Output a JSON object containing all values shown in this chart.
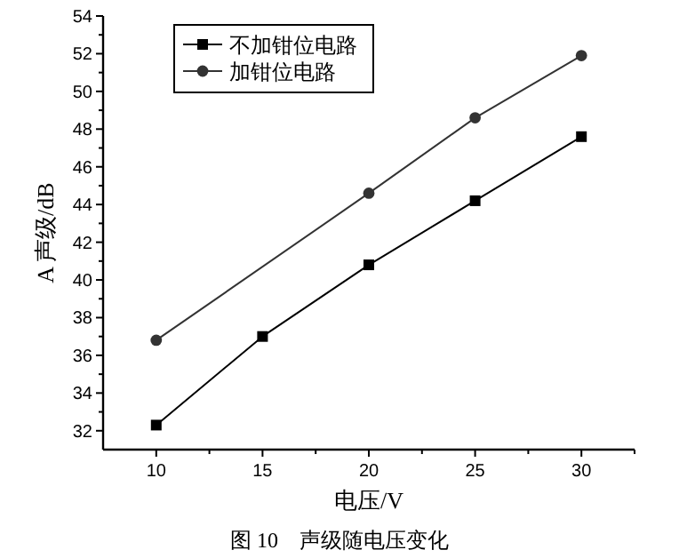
{
  "chart_data": {
    "type": "line",
    "xlabel": "电压/V",
    "ylabel": "A 声级/dB",
    "annotations": [
      "图 10　声级随电压变化"
    ],
    "xlim": [
      7.5,
      32.5
    ],
    "xticks": [
      10,
      {
        "value": 12.5,
        "label": null
      },
      15,
      {
        "value": 17.5,
        "label": null
      },
      20,
      {
        "value": 22.5,
        "label": null
      },
      25,
      {
        "value": 27.5,
        "label": null
      },
      30,
      {
        "value": 32.5,
        "label": null
      }
    ],
    "ylim": [
      31,
      54
    ],
    "yticks": [
      32,
      {
        "value": 33,
        "label": null
      },
      34,
      {
        "value": 35,
        "label": null
      },
      36,
      {
        "value": 37,
        "label": null
      },
      38,
      {
        "value": 39,
        "label": null
      },
      40,
      {
        "value": 41,
        "label": null
      },
      42,
      {
        "value": 43,
        "label": null
      },
      44,
      {
        "value": 45,
        "label": null
      },
      46,
      {
        "value": 47,
        "label": null
      },
      48,
      {
        "value": 49,
        "label": null
      },
      50,
      {
        "value": 51,
        "label": null
      },
      52,
      {
        "value": 53,
        "label": null
      },
      54
    ],
    "legend": "top left",
    "grid": false,
    "series": [
      {
        "name": "不加钳位电路",
        "color": "#000000",
        "marker": "square",
        "x": [
          10,
          15,
          20,
          25,
          30
        ],
        "values": [
          32.3,
          37.0,
          40.8,
          44.2,
          47.6
        ]
      },
      {
        "name": "加钳位电路",
        "color": "#333333",
        "marker": "circle",
        "x": [
          10,
          20,
          25,
          30
        ],
        "values": [
          36.8,
          44.6,
          48.6,
          51.9
        ]
      }
    ]
  }
}
